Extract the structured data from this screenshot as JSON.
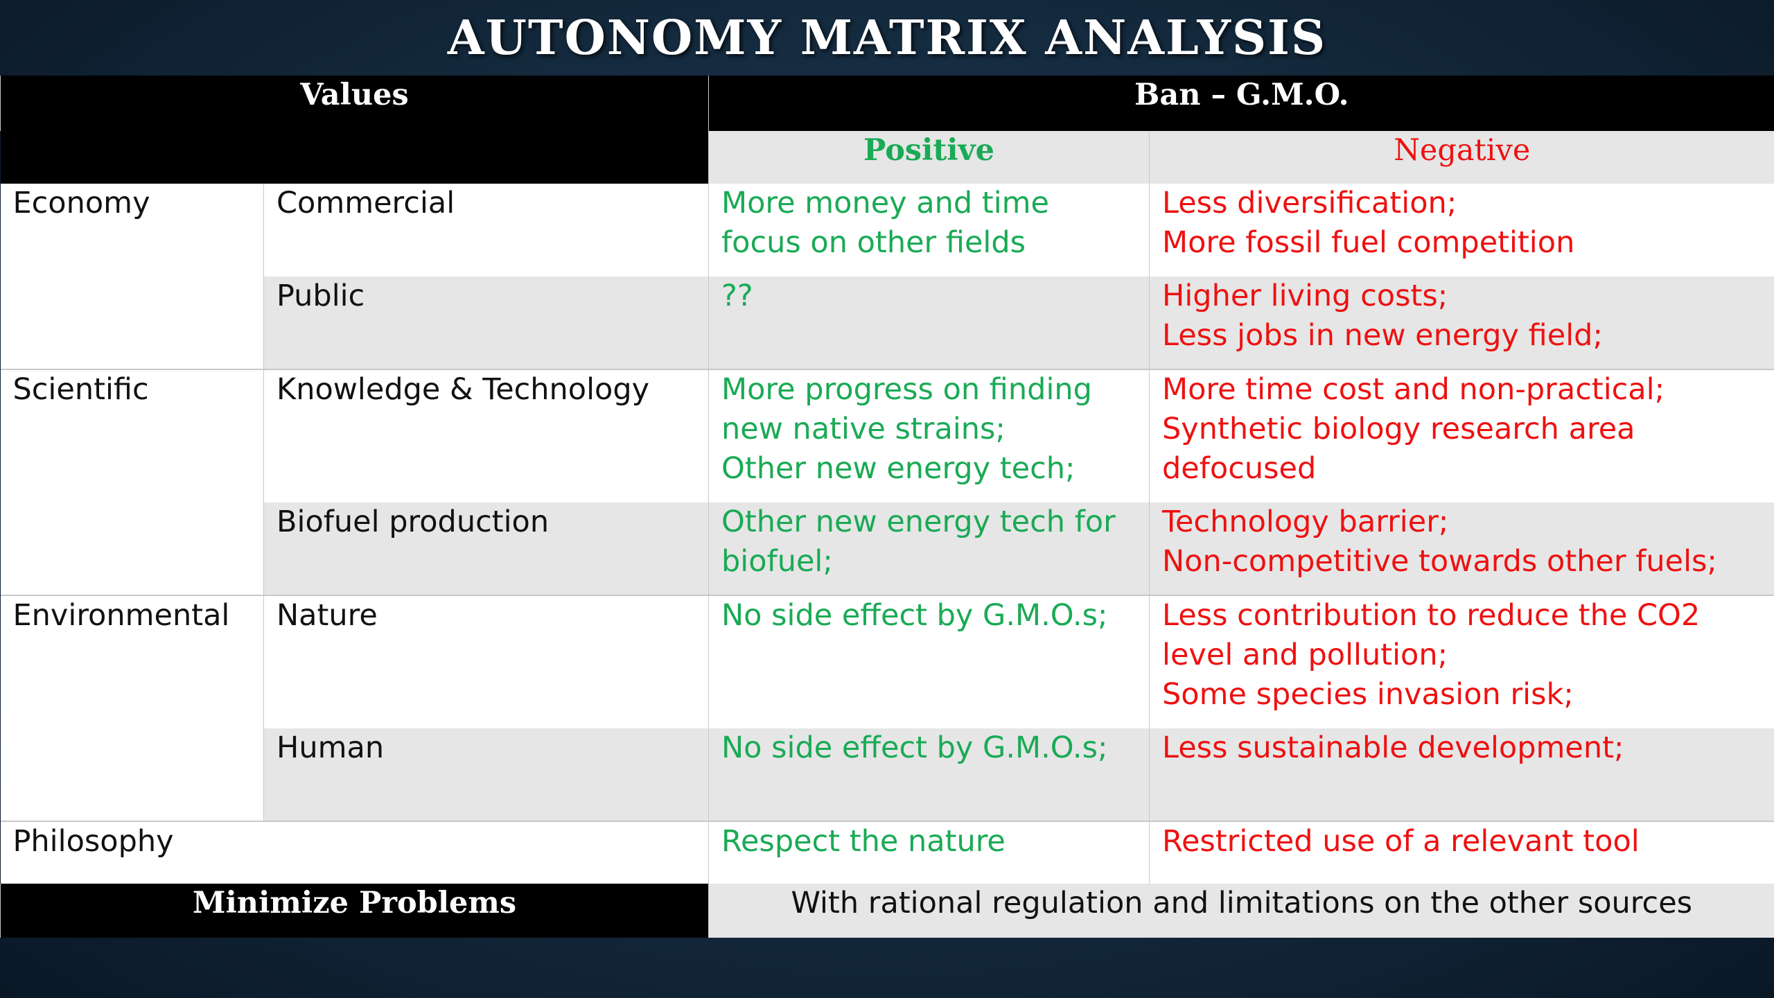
{
  "title": "AUTONOMY MATRIX ANALYSIS",
  "header": {
    "values": "Values",
    "ban": "Ban – G.M.O.",
    "positive": "Positive",
    "negative": "Negative"
  },
  "colors": {
    "positive": "#1aaa55",
    "negative": "#ee1111",
    "header_bg": "#000000",
    "row_gray": "#e6e6e6"
  },
  "categories": {
    "economy": "Economy",
    "scientific": "Scientific",
    "environmental": "Environmental",
    "philosophy": "Philosophy"
  },
  "rows": [
    {
      "sub": "Commercial",
      "positive": [
        "More money and time",
        "focus on other fields"
      ],
      "negative": [
        "Less diversification;",
        "More fossil fuel competition"
      ]
    },
    {
      "sub": "Public",
      "positive": [
        "??"
      ],
      "negative": [
        "Higher living costs;",
        "Less jobs in new energy field;"
      ]
    },
    {
      "sub": "Knowledge &  Technology",
      "positive": [
        "More progress on finding",
        "new native strains;",
        "Other new energy tech;"
      ],
      "negative": [
        "More time cost and non-practical;",
        "Synthetic biology research area",
        "defocused"
      ]
    },
    {
      "sub": "Biofuel production",
      "positive": [
        "Other new energy tech for",
        "biofuel;"
      ],
      "negative": [
        "Technology barrier;",
        "Non-competitive towards other fuels;"
      ]
    },
    {
      "sub": "Nature",
      "positive": [
        "No side effect by G.M.O.s;"
      ],
      "negative": [
        "Less contribution to reduce the CO2",
        "level and pollution;",
        "Some species invasion risk;"
      ]
    },
    {
      "sub": "Human",
      "positive": [
        "No side effect by G.M.O.s;"
      ],
      "negative": [
        "Less sustainable development;"
      ]
    }
  ],
  "philosophy_row": {
    "positive": "Respect the nature",
    "negative": "Restricted use of a relevant tool"
  },
  "footer": {
    "left": "Minimize Problems",
    "right": "With rational regulation and limitations on the other sources"
  }
}
